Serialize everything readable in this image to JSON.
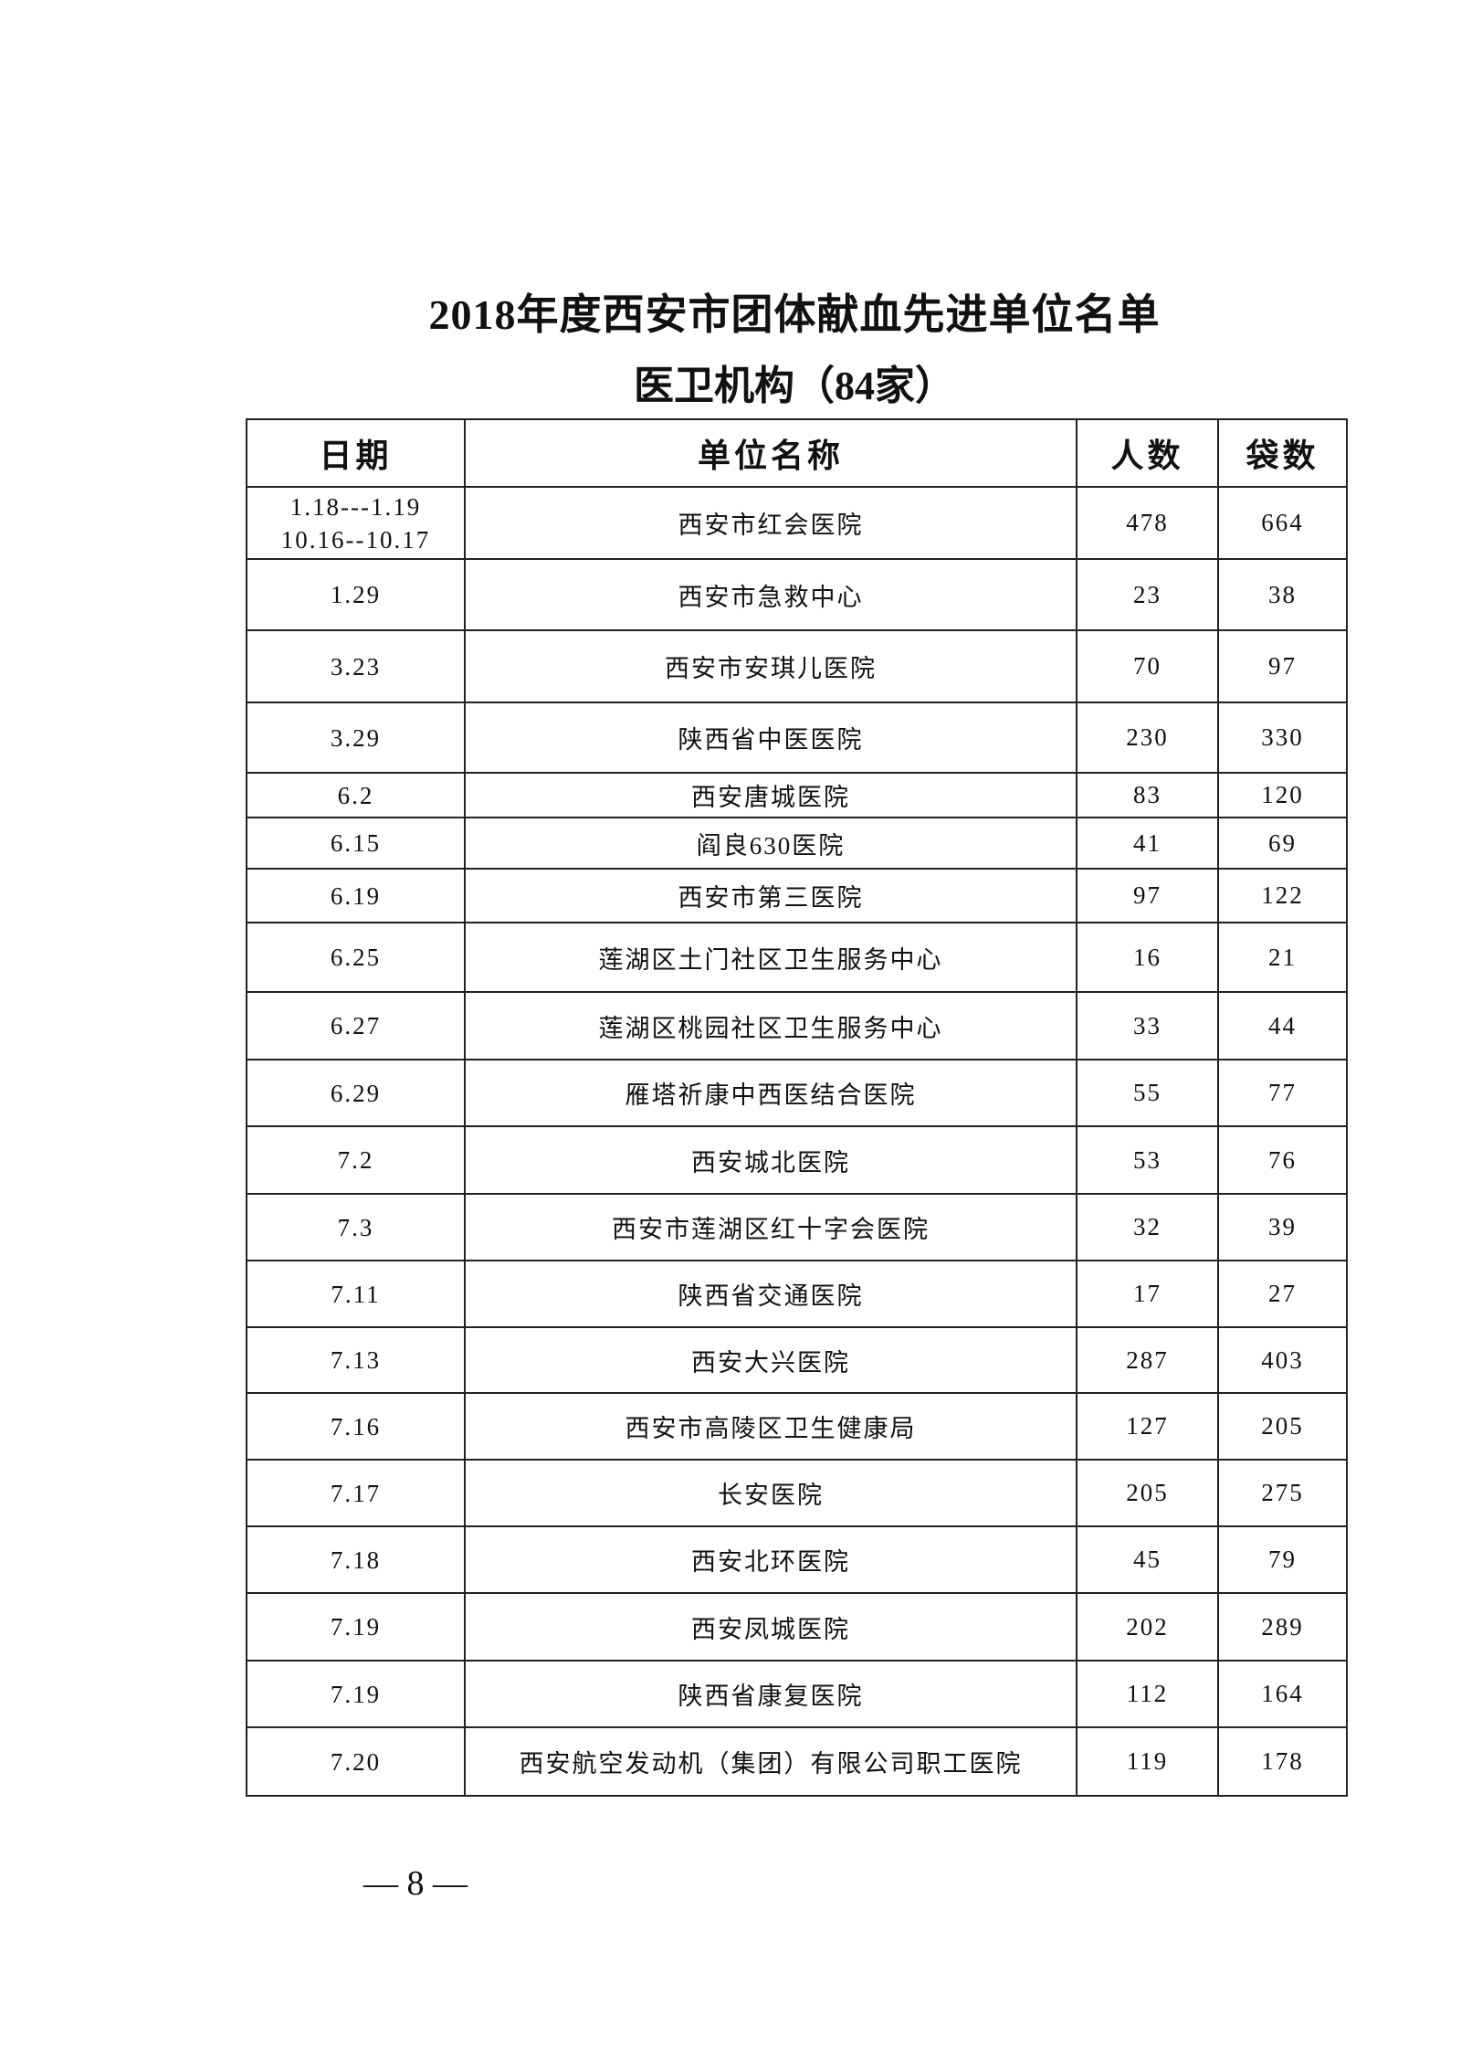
{
  "title": "2018年度西安市团体献血先进单位名单",
  "subtitle": "医卫机构（84家）",
  "table": {
    "headers": [
      "日期",
      "单位名称",
      "人数",
      "袋数"
    ],
    "rows": [
      {
        "date": [
          "1.18---1.19",
          "10.16--10.17"
        ],
        "name": "西安市红会医院",
        "people": "478",
        "bags": "664"
      },
      {
        "date": [
          "1.29"
        ],
        "name": "西安市急救中心",
        "people": "23",
        "bags": "38"
      },
      {
        "date": [
          "3.23"
        ],
        "name": "西安市安琪儿医院",
        "people": "70",
        "bags": "97"
      },
      {
        "date": [
          "3.29"
        ],
        "name": "陕西省中医医院",
        "people": "230",
        "bags": "330"
      },
      {
        "date": [
          "6.2"
        ],
        "name": "西安唐城医院",
        "people": "83",
        "bags": "120"
      },
      {
        "date": [
          "6.15"
        ],
        "name": "阎良630医院",
        "people": "41",
        "bags": "69"
      },
      {
        "date": [
          "6.19"
        ],
        "name": "西安市第三医院",
        "people": "97",
        "bags": "122"
      },
      {
        "date": [
          "6.25"
        ],
        "name": "莲湖区土门社区卫生服务中心",
        "people": "16",
        "bags": "21"
      },
      {
        "date": [
          "6.27"
        ],
        "name": "莲湖区桃园社区卫生服务中心",
        "people": "33",
        "bags": "44"
      },
      {
        "date": [
          "6.29"
        ],
        "name": "雁塔祈康中西医结合医院",
        "people": "55",
        "bags": "77"
      },
      {
        "date": [
          "7.2"
        ],
        "name": "西安城北医院",
        "people": "53",
        "bags": "76"
      },
      {
        "date": [
          "7.3"
        ],
        "name": "西安市莲湖区红十字会医院",
        "people": "32",
        "bags": "39"
      },
      {
        "date": [
          "7.11"
        ],
        "name": "陕西省交通医院",
        "people": "17",
        "bags": "27"
      },
      {
        "date": [
          "7.13"
        ],
        "name": "西安大兴医院",
        "people": "287",
        "bags": "403"
      },
      {
        "date": [
          "7.16"
        ],
        "name": "西安市高陵区卫生健康局",
        "people": "127",
        "bags": "205"
      },
      {
        "date": [
          "7.17"
        ],
        "name": "长安医院",
        "people": "205",
        "bags": "275"
      },
      {
        "date": [
          "7.18"
        ],
        "name": "西安北环医院",
        "people": "45",
        "bags": "79"
      },
      {
        "date": [
          "7.19"
        ],
        "name": "西安凤城医院",
        "people": "202",
        "bags": "289"
      },
      {
        "date": [
          "7.19"
        ],
        "name": "陕西省康复医院",
        "people": "112",
        "bags": "164"
      },
      {
        "date": [
          "7.20"
        ],
        "name": "西安航空发动机（集团）有限公司职工医院",
        "people": "119",
        "bags": "178"
      }
    ]
  },
  "page_number": "— 8 —"
}
